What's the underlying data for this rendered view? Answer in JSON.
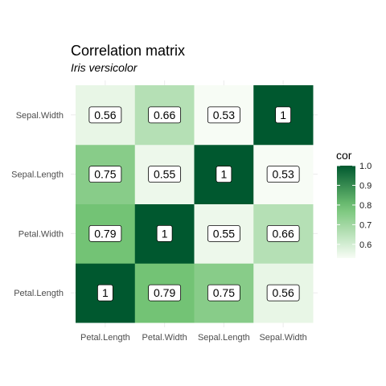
{
  "chart_data": {
    "type": "heatmap",
    "title": "Correlation matrix",
    "subtitle": "Iris versicolor",
    "x_categories": [
      "Petal.Length",
      "Petal.Width",
      "Sepal.Length",
      "Sepal.Width"
    ],
    "y_categories": [
      "Petal.Length",
      "Petal.Width",
      "Sepal.Length",
      "Sepal.Width"
    ],
    "values": [
      [
        1,
        0.79,
        0.75,
        0.56
      ],
      [
        0.79,
        1,
        0.55,
        0.66
      ],
      [
        0.75,
        0.55,
        1,
        0.53
      ],
      [
        0.56,
        0.66,
        0.53,
        1
      ]
    ],
    "cell_labels": [
      [
        "1",
        "0.79",
        "0.75",
        "0.56"
      ],
      [
        "0.79",
        "1",
        "0.55",
        "0.66"
      ],
      [
        "0.75",
        "0.55",
        "1",
        "0.53"
      ],
      [
        "0.56",
        "0.66",
        "0.53",
        "1"
      ]
    ],
    "legend": {
      "title": "cor",
      "placement": "right",
      "range": [
        0.53,
        1.0
      ],
      "ticks": [
        1.0,
        0.9,
        0.8,
        0.7,
        0.6
      ],
      "tick_labels": [
        "1.0",
        "0.9",
        "0.8",
        "0.7",
        "0.6"
      ],
      "color_low": "#f7fcf5",
      "color_high": "#00582f"
    },
    "grid": true
  }
}
